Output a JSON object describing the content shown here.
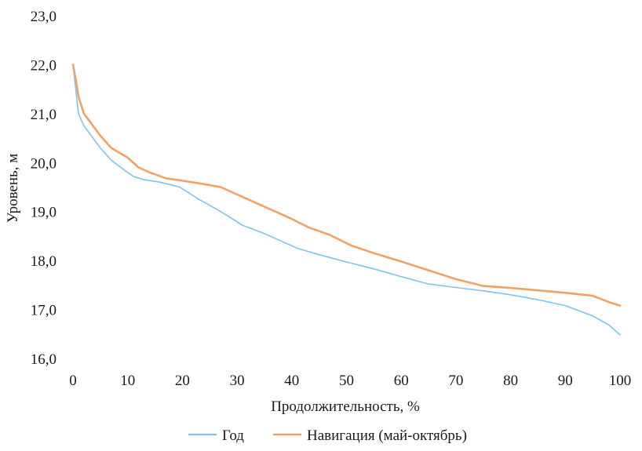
{
  "chart_data": {
    "type": "line",
    "xlabel": "Продолжительность, %",
    "ylabel": "Уровень, м",
    "xlim": [
      0,
      100
    ],
    "ylim": [
      16.0,
      23.0
    ],
    "x_ticks": [
      "0",
      "10",
      "20",
      "30",
      "40",
      "50",
      "60",
      "70",
      "80",
      "90",
      "100"
    ],
    "y_ticks": [
      "16,0",
      "17,0",
      "18,0",
      "19,0",
      "20,0",
      "21,0",
      "22,0",
      "23,0"
    ],
    "grid": false,
    "legend_position": "bottom",
    "series": [
      {
        "name": "Год",
        "color": "#7ec4ec",
        "points": [
          [
            0,
            22.0
          ],
          [
            0.5,
            21.5
          ],
          [
            1,
            21.0
          ],
          [
            2,
            20.75
          ],
          [
            3,
            20.6
          ],
          [
            5,
            20.3
          ],
          [
            7,
            20.05
          ],
          [
            9,
            19.88
          ],
          [
            11,
            19.72
          ],
          [
            13,
            19.65
          ],
          [
            16,
            19.6
          ],
          [
            19.5,
            19.5
          ],
          [
            23,
            19.25
          ],
          [
            27,
            19.0
          ],
          [
            31,
            18.72
          ],
          [
            35,
            18.55
          ],
          [
            38,
            18.4
          ],
          [
            41,
            18.25
          ],
          [
            45,
            18.12
          ],
          [
            50,
            17.97
          ],
          [
            55,
            17.83
          ],
          [
            60,
            17.67
          ],
          [
            65,
            17.52
          ],
          [
            70,
            17.45
          ],
          [
            75,
            17.38
          ],
          [
            80,
            17.3
          ],
          [
            85,
            17.2
          ],
          [
            90,
            17.08
          ],
          [
            95,
            16.87
          ],
          [
            98,
            16.68
          ],
          [
            100,
            16.48
          ]
        ]
      },
      {
        "name": "Навигация (май-октябрь)",
        "color": "#f0a265",
        "points": [
          [
            0,
            22.0
          ],
          [
            0.5,
            21.7
          ],
          [
            1,
            21.35
          ],
          [
            2,
            21.0
          ],
          [
            3,
            20.85
          ],
          [
            5,
            20.55
          ],
          [
            7,
            20.3
          ],
          [
            10,
            20.1
          ],
          [
            12,
            19.9
          ],
          [
            14,
            19.8
          ],
          [
            17,
            19.68
          ],
          [
            20,
            19.63
          ],
          [
            24,
            19.56
          ],
          [
            27,
            19.5
          ],
          [
            30,
            19.35
          ],
          [
            35,
            19.1
          ],
          [
            40,
            18.85
          ],
          [
            43,
            18.68
          ],
          [
            47,
            18.52
          ],
          [
            51,
            18.3
          ],
          [
            55,
            18.15
          ],
          [
            60,
            17.98
          ],
          [
            65,
            17.8
          ],
          [
            70,
            17.62
          ],
          [
            75,
            17.48
          ],
          [
            80,
            17.44
          ],
          [
            85,
            17.39
          ],
          [
            90,
            17.34
          ],
          [
            95,
            17.28
          ],
          [
            98,
            17.15
          ],
          [
            100,
            17.08
          ]
        ]
      }
    ]
  }
}
